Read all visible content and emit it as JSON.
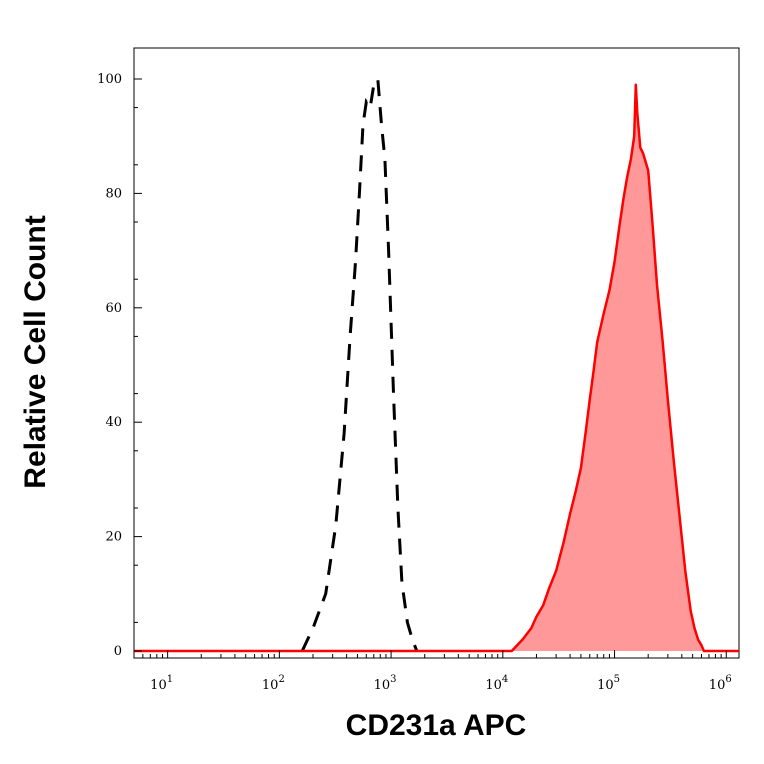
{
  "chart_data": {
    "type": "area",
    "xlabel": "CD231a APC",
    "ylabel": "Relative Cell Count",
    "xscale": "log",
    "xlim": [
      5,
      1300000
    ],
    "ylim": [
      0,
      100
    ],
    "y_ticks": [
      0,
      20,
      40,
      60,
      80,
      100
    ],
    "y_tick_labels": [
      "0",
      "20",
      "40",
      "60",
      "80",
      "100"
    ],
    "x_ticks": [
      10,
      100,
      1000,
      10000,
      100000,
      1000000
    ],
    "x_tick_bases": [
      "10",
      "10",
      "10",
      "10",
      "10",
      "10"
    ],
    "x_tick_exponents": [
      "1",
      "2",
      "3",
      "4",
      "5",
      "6"
    ],
    "grid": false,
    "series": [
      {
        "style": "dashed",
        "color": "#000000",
        "points": [
          [
            160,
            0
          ],
          [
            200,
            4
          ],
          [
            260,
            10
          ],
          [
            320,
            22
          ],
          [
            380,
            38
          ],
          [
            430,
            55
          ],
          [
            480,
            68
          ],
          [
            520,
            80
          ],
          [
            560,
            92
          ],
          [
            600,
            96
          ],
          [
            650,
            95
          ],
          [
            700,
            99
          ],
          [
            760,
            100
          ],
          [
            820,
            92
          ],
          [
            880,
            86
          ],
          [
            950,
            70
          ],
          [
            1050,
            45
          ],
          [
            1150,
            25
          ],
          [
            1250,
            12
          ],
          [
            1400,
            5
          ],
          [
            1550,
            2
          ],
          [
            1700,
            0
          ]
        ]
      },
      {
        "style": "filled",
        "color": "#ff0000",
        "fill": "#ff9999",
        "points": [
          [
            5,
            0
          ],
          [
            12000,
            0
          ],
          [
            15000,
            2
          ],
          [
            18000,
            4
          ],
          [
            20000,
            6
          ],
          [
            23000,
            8
          ],
          [
            26000,
            11
          ],
          [
            30000,
            14
          ],
          [
            35000,
            19
          ],
          [
            40000,
            24
          ],
          [
            45000,
            28
          ],
          [
            50000,
            32
          ],
          [
            55000,
            38
          ],
          [
            60000,
            44
          ],
          [
            65000,
            49
          ],
          [
            70000,
            54
          ],
          [
            80000,
            59
          ],
          [
            90000,
            63
          ],
          [
            100000,
            68
          ],
          [
            110000,
            74
          ],
          [
            120000,
            79
          ],
          [
            130000,
            83
          ],
          [
            140000,
            86
          ],
          [
            150000,
            90
          ],
          [
            155000,
            99
          ],
          [
            160000,
            94
          ],
          [
            170000,
            88
          ],
          [
            180000,
            87
          ],
          [
            200000,
            84
          ],
          [
            220000,
            74
          ],
          [
            240000,
            64
          ],
          [
            270000,
            54
          ],
          [
            300000,
            44
          ],
          [
            340000,
            33
          ],
          [
            380000,
            24
          ],
          [
            430000,
            14
          ],
          [
            480000,
            7
          ],
          [
            520000,
            4
          ],
          [
            560000,
            2
          ],
          [
            600000,
            1
          ],
          [
            630000,
            0
          ],
          [
            1300000,
            0
          ]
        ]
      }
    ]
  }
}
